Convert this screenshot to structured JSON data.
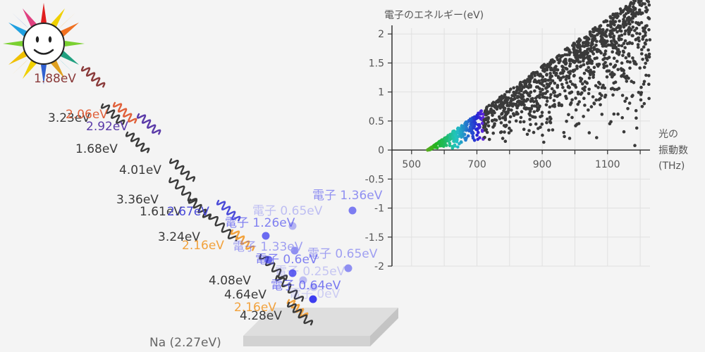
{
  "colors": {
    "background": "#f4f4f4",
    "photon_dark": "#3a3a3a",
    "photon_orange": "#f2a23c",
    "photon_red": "#e0603a",
    "photon_blue": "#4a4ad8",
    "photon_violet": "#5a3aa8",
    "photon_maroon": "#8a3a3a",
    "electron": "#3d3df0",
    "dot": "#3a3a3a",
    "plate": "#d8d8d8"
  },
  "sun": {
    "icon": "smiling-sun-icon"
  },
  "metal": {
    "label": "Na (2.27eV)"
  },
  "photons": [
    {
      "label": "1.88eV",
      "color": "photon_maroon"
    },
    {
      "label": "3.23eV",
      "color": "photon_dark"
    },
    {
      "label": "2.06eV",
      "color": "photon_red"
    },
    {
      "label": "2.92eV",
      "color": "photon_violet"
    },
    {
      "label": "1.68eV",
      "color": "photon_dark"
    },
    {
      "label": "4.01eV",
      "color": "photon_dark"
    },
    {
      "label": "3.36eV",
      "color": "photon_dark"
    },
    {
      "label": "1.61eV",
      "color": "photon_dark"
    },
    {
      "label": "2.67eV",
      "color": "photon_blue"
    },
    {
      "label": "3.24eV",
      "color": "photon_dark"
    },
    {
      "label": "2.16eV",
      "color": "photon_orange"
    },
    {
      "label": "4.08eV",
      "color": "photon_dark"
    },
    {
      "label": "4.64eV",
      "color": "photon_dark"
    },
    {
      "label": "2.16eV",
      "color": "photon_orange"
    },
    {
      "label": "4.28eV",
      "color": "photon_dark"
    }
  ],
  "electrons": [
    {
      "label": "電子 1.36eV",
      "opacity": 0.65
    },
    {
      "label": "電子 0.65eV",
      "opacity": 0.35
    },
    {
      "label": "電子 1.26eV",
      "opacity": 0.75
    },
    {
      "label": "電子 1.33eV",
      "opacity": 0.55
    },
    {
      "label": "電子 0.6eV",
      "opacity": 0.75
    },
    {
      "label": "電子 0.65eV",
      "opacity": 0.55
    },
    {
      "label": "電子 0.25eV",
      "opacity": 0.3
    },
    {
      "label": "電子 0.64eV",
      "opacity": 0.8
    },
    {
      "label": "電子 0eV",
      "opacity": 0.25
    },
    {
      "label": "",
      "opacity": 1.0
    }
  ],
  "chart_data": {
    "type": "scatter",
    "ylabel": "電子のエネルギー(eV)",
    "xlabel_lines": [
      "光の",
      "振動数",
      "(THz)"
    ],
    "xlim": [
      440,
      1230
    ],
    "ylim": [
      -2,
      2.1
    ],
    "xticks": [
      "500",
      "700",
      "900",
      "1100"
    ],
    "xtick_values": [
      500,
      700,
      900,
      1100
    ],
    "yticks": [
      "2",
      "1.5",
      "1",
      "0.5",
      "0",
      "-0.5",
      "-1",
      "-1.5",
      "-2"
    ],
    "ytick_values": [
      2,
      1.5,
      1,
      0.5,
      0,
      -0.5,
      -1,
      -1.5,
      -2
    ],
    "threshold_frequency": 549,
    "max_frequency": 1230,
    "grid": true
  }
}
